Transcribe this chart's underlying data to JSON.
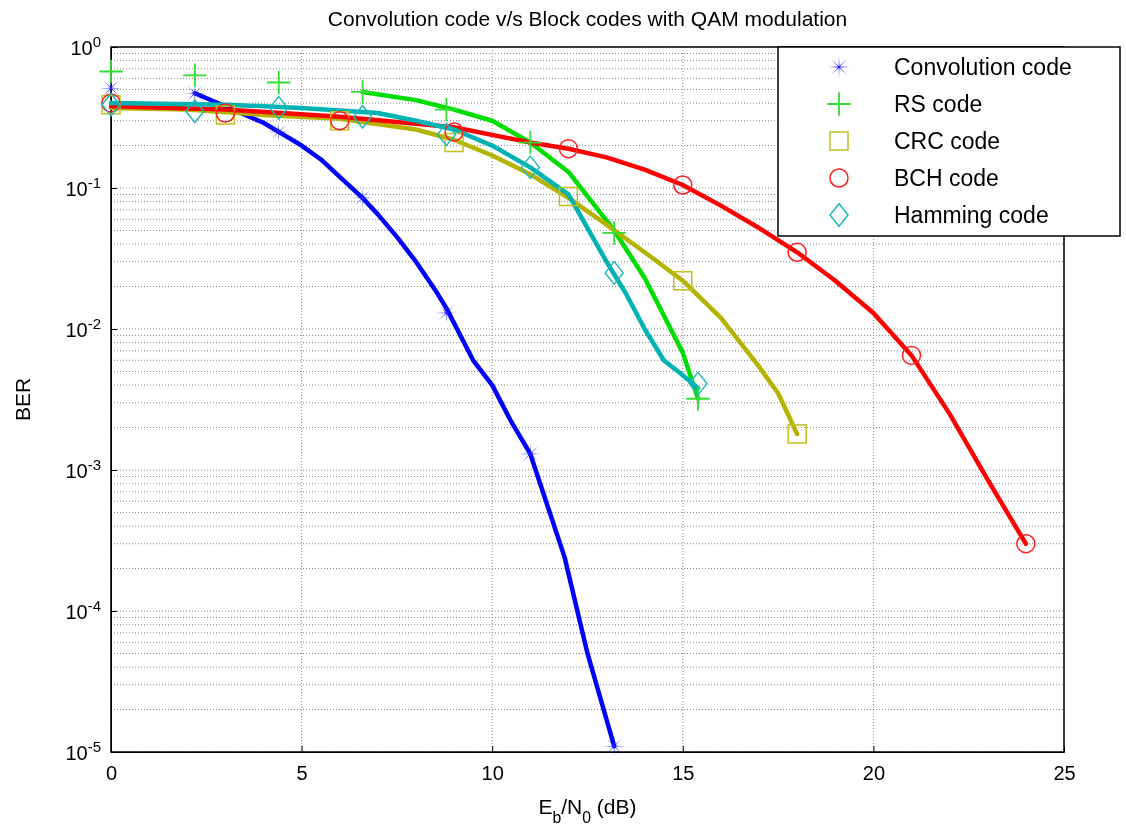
{
  "chart_data": {
    "type": "line",
    "title": "Convolution code v/s Block codes with QAM modulation",
    "xlabel": "E$_{b}$/N$_{0}$ (dB)",
    "ylabel": "BER",
    "xlim": [
      0,
      25
    ],
    "xticks": [
      0,
      5,
      10,
      15,
      20,
      25
    ],
    "ylim": [
      1e-05,
      1
    ],
    "yticks": [
      {
        "value": 1e-05,
        "label": "10$^{-5}$"
      },
      {
        "value": 0.0001,
        "label": "10$^{-4}$"
      },
      {
        "value": 0.001,
        "label": "10$^{-3}$"
      },
      {
        "value": 0.01,
        "label": "10$^{-2}$"
      },
      {
        "value": 0.1,
        "label": "10$^{-1}$"
      },
      {
        "value": 1,
        "label": "10$^{0}$"
      }
    ],
    "log": "y",
    "grid": true,
    "legend": "top right",
    "series": [
      {
        "color": "#0000ff",
        "x": [
          2.2,
          3,
          4,
          4.4,
          5,
          5.5,
          6,
          6.6,
          7,
          7.5,
          8,
          8.5,
          8.8,
          9.5,
          10,
          10.5,
          11,
          11.9,
          12.5,
          13.2
        ],
        "values": [
          0.47,
          0.38,
          0.29,
          0.25,
          0.2,
          0.16,
          0.12,
          0.085,
          0.065,
          0.045,
          0.03,
          0.019,
          0.014,
          0.006,
          0.004,
          0.0022,
          0.0013,
          0.00024,
          5e-05,
          1.1e-05
        ]
      },
      {
        "color": "#00dd00",
        "x": [
          6.6,
          8,
          9,
          10,
          11,
          12,
          13.2,
          14,
          15,
          15.4
        ],
        "values": [
          0.48,
          0.42,
          0.36,
          0.3,
          0.21,
          0.13,
          0.05,
          0.023,
          0.0068,
          0.0032
        ]
      },
      {
        "color": "#b3b300",
        "x": [
          0,
          2,
          4,
          6,
          8,
          9,
          10,
          11,
          12,
          13,
          14,
          15,
          16,
          17,
          17.5,
          18
        ],
        "values": [
          0.37,
          0.36,
          0.33,
          0.31,
          0.26,
          0.22,
          0.17,
          0.125,
          0.085,
          0.055,
          0.035,
          0.022,
          0.012,
          0.0054,
          0.0035,
          0.0018
        ]
      },
      {
        "color": "#ff0000",
        "x": [
          0,
          3,
          6,
          9,
          11,
          12,
          13,
          14,
          15,
          16,
          17,
          18,
          19,
          20,
          21,
          22,
          23,
          24
        ],
        "values": [
          0.38,
          0.36,
          0.32,
          0.27,
          0.21,
          0.19,
          0.165,
          0.135,
          0.105,
          0.075,
          0.052,
          0.035,
          0.022,
          0.013,
          0.0065,
          0.0025,
          0.00085,
          0.0003
        ]
      },
      {
        "color": "#00b3b3",
        "x": [
          0,
          3,
          5,
          7,
          8,
          9,
          10,
          11,
          12,
          13,
          13.5,
          14,
          14.5,
          15,
          15.4
        ],
        "values": [
          0.4,
          0.39,
          0.37,
          0.34,
          0.3,
          0.26,
          0.2,
          0.14,
          0.09,
          0.03,
          0.018,
          0.01,
          0.006,
          0.0047,
          0.0038
        ]
      },
      {
        "type": "scatter",
        "name": "Convolution code",
        "color": "#2222ff",
        "marker": "star",
        "x": [
          0,
          2.2,
          4.4,
          6.6,
          8.8,
          11,
          13.2
        ],
        "values": [
          0.51,
          0.47,
          0.25,
          0.085,
          0.013,
          0.0013,
          1.1e-05
        ]
      },
      {
        "type": "scatter",
        "name": "RS code",
        "color": "#33dd33",
        "marker": "cross",
        "x": [
          0,
          2.2,
          4.4,
          6.6,
          8.8,
          11,
          13.2,
          15.4
        ],
        "values": [
          0.67,
          0.63,
          0.56,
          0.48,
          0.36,
          0.21,
          0.048,
          0.0032
        ]
      },
      {
        "type": "scatter",
        "name": "CRC code",
        "color": "#c0c020",
        "marker": "square",
        "x": [
          0,
          3,
          6,
          9,
          12,
          15,
          18
        ],
        "values": [
          0.39,
          0.33,
          0.3,
          0.21,
          0.087,
          0.022,
          0.0018
        ]
      },
      {
        "type": "scatter",
        "name": "BCH code",
        "color": "#ff2020",
        "marker": "circle",
        "x": [
          0,
          3,
          6,
          9,
          12,
          15,
          18,
          21,
          24
        ],
        "values": [
          0.4,
          0.34,
          0.3,
          0.25,
          0.19,
          0.105,
          0.035,
          0.0065,
          0.0003
        ]
      },
      {
        "type": "scatter",
        "name": "Hamming code",
        "color": "#20b8b8",
        "marker": "diamond",
        "x": [
          0,
          2.2,
          4.4,
          6.6,
          8.8,
          11,
          13.2,
          15.4
        ],
        "values": [
          0.39,
          0.35,
          0.37,
          0.32,
          0.24,
          0.14,
          0.025,
          0.0041
        ]
      }
    ]
  }
}
